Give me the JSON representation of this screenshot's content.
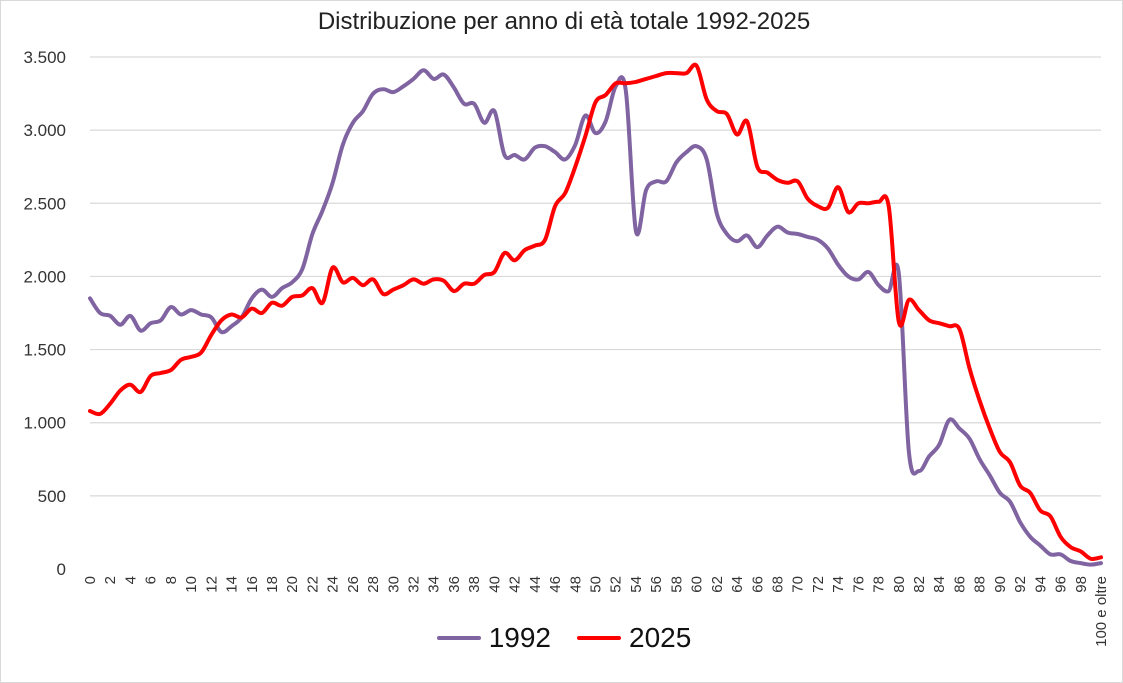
{
  "chart_data": {
    "type": "line",
    "title": "Distribuzione per anno di età totale 1992-2025",
    "xlabel": "",
    "ylabel": "",
    "ylim": [
      0,
      3500
    ],
    "y_ticks": [
      0,
      500,
      1000,
      1500,
      2000,
      2500,
      3000,
      3500
    ],
    "y_tick_labels": [
      "0",
      "500",
      "1.000",
      "1.500",
      "2.000",
      "2.500",
      "3.000",
      "3.500"
    ],
    "x_tick_labels": [
      "0",
      "2",
      "4",
      "6",
      "8",
      "10",
      "12",
      "14",
      "16",
      "18",
      "20",
      "22",
      "24",
      "26",
      "28",
      "30",
      "32",
      "34",
      "36",
      "38",
      "40",
      "42",
      "44",
      "46",
      "48",
      "50",
      "52",
      "54",
      "56",
      "58",
      "60",
      "62",
      "64",
      "66",
      "68",
      "70",
      "72",
      "74",
      "76",
      "78",
      "80",
      "82",
      "84",
      "86",
      "88",
      "90",
      "92",
      "94",
      "96",
      "98",
      "100 e oltre"
    ],
    "grid": "horizontal",
    "legend_position": "bottom",
    "x": [
      0,
      1,
      2,
      3,
      4,
      5,
      6,
      7,
      8,
      9,
      10,
      11,
      12,
      13,
      14,
      15,
      16,
      17,
      18,
      19,
      20,
      21,
      22,
      23,
      24,
      25,
      26,
      27,
      28,
      29,
      30,
      31,
      32,
      33,
      34,
      35,
      36,
      37,
      38,
      39,
      40,
      41,
      42,
      43,
      44,
      45,
      46,
      47,
      48,
      49,
      50,
      51,
      52,
      53,
      54,
      55,
      56,
      57,
      58,
      59,
      60,
      61,
      62,
      63,
      64,
      65,
      66,
      67,
      68,
      69,
      70,
      71,
      72,
      73,
      74,
      75,
      76,
      77,
      78,
      79,
      80,
      81,
      82,
      83,
      84,
      85,
      86,
      87,
      88,
      89,
      90,
      91,
      92,
      93,
      94,
      95,
      96,
      97,
      98,
      99,
      100
    ],
    "series": [
      {
        "name": "1992",
        "color": "#8064a2",
        "values": [
          1850,
          1750,
          1730,
          1670,
          1730,
          1630,
          1680,
          1700,
          1790,
          1740,
          1770,
          1740,
          1720,
          1620,
          1660,
          1720,
          1850,
          1910,
          1860,
          1920,
          1960,
          2050,
          2290,
          2450,
          2640,
          2900,
          3050,
          3130,
          3250,
          3280,
          3260,
          3300,
          3350,
          3410,
          3350,
          3380,
          3290,
          3180,
          3180,
          3050,
          3130,
          2830,
          2830,
          2800,
          2880,
          2890,
          2850,
          2800,
          2900,
          3100,
          2980,
          3060,
          3300,
          3270,
          2310,
          2590,
          2650,
          2650,
          2780,
          2850,
          2890,
          2800,
          2430,
          2290,
          2240,
          2280,
          2200,
          2280,
          2340,
          2300,
          2290,
          2270,
          2250,
          2190,
          2080,
          2000,
          1980,
          2030,
          1940,
          1900,
          2020,
          800,
          670,
          770,
          850,
          1020,
          960,
          890,
          750,
          640,
          520,
          460,
          320,
          220,
          160,
          100,
          100,
          55,
          40,
          30,
          40
        ]
      },
      {
        "name": "2025",
        "color": "#ff0000",
        "values": [
          1080,
          1060,
          1130,
          1220,
          1260,
          1210,
          1320,
          1340,
          1360,
          1430,
          1450,
          1480,
          1600,
          1700,
          1740,
          1720,
          1780,
          1750,
          1820,
          1800,
          1860,
          1870,
          1920,
          1820,
          2060,
          1960,
          1990,
          1940,
          1980,
          1880,
          1910,
          1940,
          1980,
          1950,
          1980,
          1970,
          1900,
          1950,
          1950,
          2010,
          2030,
          2160,
          2110,
          2180,
          2210,
          2250,
          2480,
          2570,
          2750,
          2960,
          3190,
          3240,
          3320,
          3320,
          3330,
          3350,
          3370,
          3390,
          3390,
          3390,
          3440,
          3210,
          3130,
          3110,
          2970,
          3060,
          2750,
          2710,
          2660,
          2640,
          2650,
          2530,
          2480,
          2470,
          2610,
          2440,
          2500,
          2500,
          2510,
          2480,
          1690,
          1840,
          1770,
          1700,
          1680,
          1660,
          1640,
          1370,
          1150,
          960,
          800,
          730,
          570,
          520,
          400,
          360,
          220,
          150,
          120,
          70,
          80
        ]
      }
    ]
  }
}
